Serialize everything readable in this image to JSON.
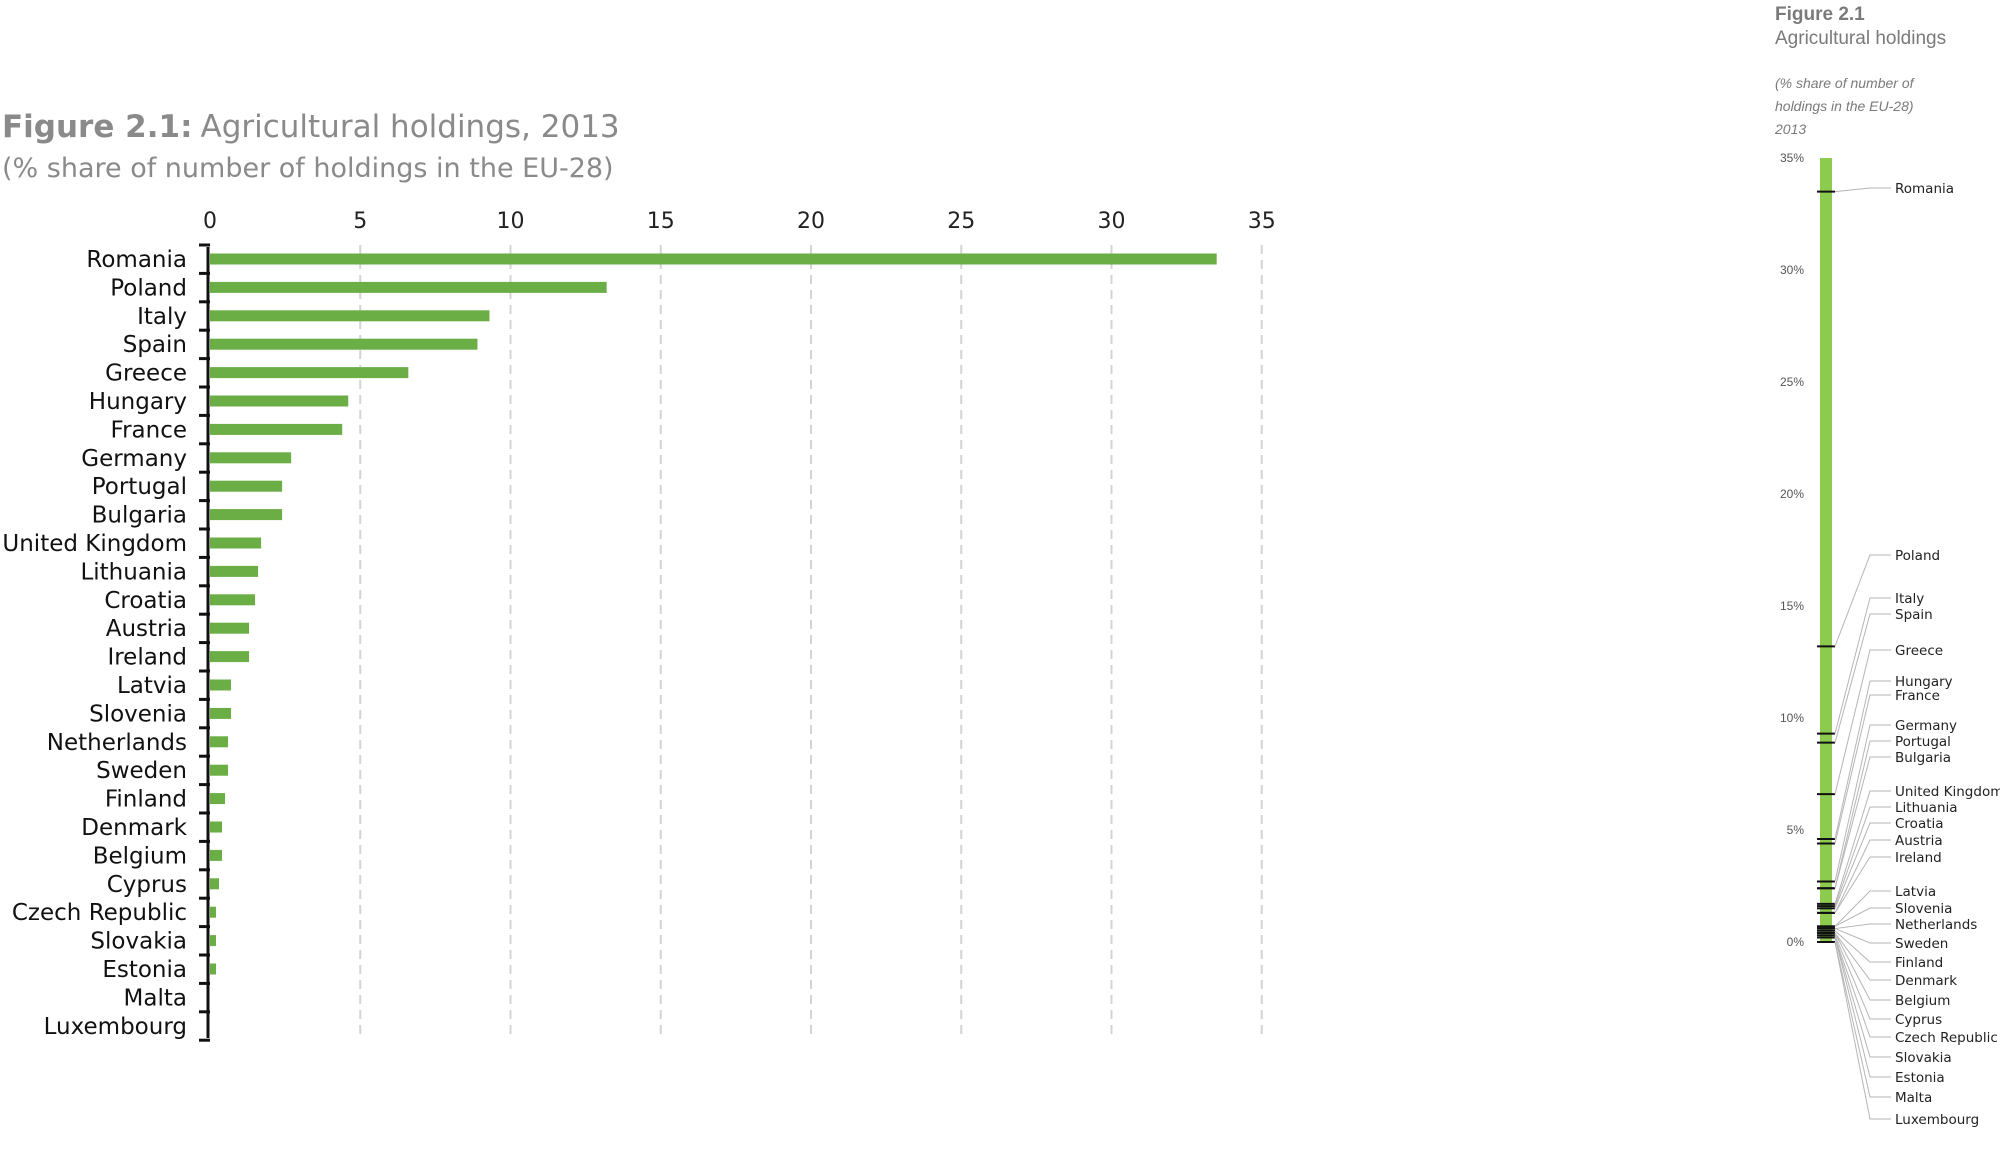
{
  "figure": {
    "title_prefix": "Figure 2.1:",
    "title_text": "Agricultural holdings, 2013",
    "subtitle": "(% share of number of holdings in the EU-28)"
  },
  "side_figure": {
    "title": "Figure 2.1",
    "subtitle": "Agricultural holdings",
    "note_lines": [
      "(% share of number of",
      "holdings in the EU-28)",
      "2013"
    ]
  },
  "colors": {
    "bar": "#6aae45",
    "side_bar": "#8dcb4f",
    "grid": "#d4d4d4",
    "axis": "#111111"
  },
  "chart_data": [
    {
      "type": "bar",
      "orientation": "horizontal",
      "title": "Figure 2.1: Agricultural holdings, 2013",
      "subtitle": "(% share of number of holdings in the EU-28)",
      "xlim": [
        0,
        35
      ],
      "xticks": [
        0,
        5,
        10,
        15,
        20,
        25,
        30,
        35
      ],
      "grid": true,
      "categories": [
        "Romania",
        "Poland",
        "Italy",
        "Spain",
        "Greece",
        "Hungary",
        "France",
        "Germany",
        "Portugal",
        "Bulgaria",
        "United Kingdom",
        "Lithuania",
        "Croatia",
        "Austria",
        "Ireland",
        "Latvia",
        "Slovenia",
        "Netherlands",
        "Sweden",
        "Finland",
        "Denmark",
        "Belgium",
        "Cyprus",
        "Czech Republic",
        "Slovakia",
        "Estonia",
        "Malta",
        "Luxembourg"
      ],
      "values": [
        33.5,
        13.2,
        9.3,
        8.9,
        6.6,
        4.6,
        4.4,
        2.7,
        2.4,
        2.4,
        1.7,
        1.6,
        1.5,
        1.3,
        1.3,
        0.7,
        0.7,
        0.6,
        0.6,
        0.5,
        0.4,
        0.4,
        0.3,
        0.2,
        0.2,
        0.2,
        0.0,
        0.0
      ]
    },
    {
      "type": "bar",
      "orientation": "vertical-strip",
      "title": "Figure 2.1",
      "subtitle": "Agricultural holdings",
      "ylim": [
        0,
        35
      ],
      "yticks": [
        "0%",
        "5%",
        "10%",
        "15%",
        "20%",
        "25%",
        "30%",
        "35%"
      ],
      "categories": [
        "Romania",
        "Poland",
        "Italy",
        "Spain",
        "Greece",
        "Hungary",
        "France",
        "Germany",
        "Portugal",
        "Bulgaria",
        "United Kingdom",
        "Lithuania",
        "Croatia",
        "Austria",
        "Ireland",
        "Latvia",
        "Slovenia",
        "Netherlands",
        "Sweden",
        "Finland",
        "Denmark",
        "Belgium",
        "Cyprus",
        "Czech Republic",
        "Slovakia",
        "Estonia",
        "Malta",
        "Luxembourg"
      ],
      "values": [
        33.5,
        13.2,
        9.3,
        8.9,
        6.6,
        4.6,
        4.4,
        2.7,
        2.4,
        2.4,
        1.7,
        1.6,
        1.5,
        1.3,
        1.3,
        0.7,
        0.7,
        0.6,
        0.6,
        0.5,
        0.4,
        0.4,
        0.3,
        0.2,
        0.2,
        0.2,
        0.0,
        0.0
      ]
    }
  ]
}
